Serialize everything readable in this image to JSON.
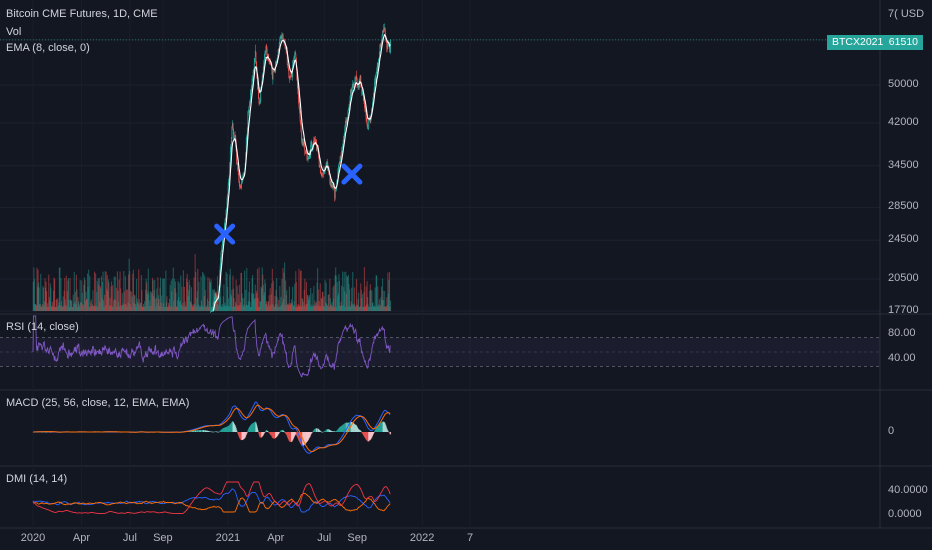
{
  "legend": {
    "title": "Bitcoin CME Futures, 1D, CME",
    "vol": "Vol",
    "ema": "EMA (8, close, 0)",
    "rsi": "RSI (14, close)",
    "macd": "MACD (25, 56, close, 12, EMA, EMA)",
    "dmi": "DMI (14, 14)"
  },
  "currency": "USD",
  "currency_prefix": "7(",
  "price_tag": {
    "symbol": "BTCX2021",
    "value": "61510"
  },
  "colors": {
    "background": "#131722",
    "up": "#26a69a",
    "down": "#ef5350",
    "ema": "#ffffff",
    "rsi": "#7e57c2",
    "macd": "#2962ff",
    "signal": "#ff6d00",
    "dmi_plus": "#2962ff",
    "dmi_minus": "#ff6d00",
    "adx": "#f23645",
    "marker": "#2962ff"
  },
  "chart_data": [
    {
      "type": "candlestick",
      "title": "Bitcoin CME Futures, 1D, CME",
      "x_ticks": [
        "2020",
        "Apr",
        "Jul",
        "Sep",
        "2021",
        "Apr",
        "Jul",
        "Sep",
        "2022",
        "7"
      ],
      "y_ticks": [
        17700,
        20500,
        24500,
        28500,
        34500,
        42000,
        50000,
        61510
      ],
      "y_scale": "log",
      "close_keypoints": [
        {
          "date": "2020-10-01",
          "close": 10700
        },
        {
          "date": "2020-10-20",
          "close": 12000
        },
        {
          "date": "2020-11-10",
          "close": 15600
        },
        {
          "date": "2020-11-26",
          "close": 17600
        },
        {
          "date": "2020-12-14",
          "close": 19300
        },
        {
          "date": "2020-12-20",
          "close": 23800
        },
        {
          "date": "2020-12-28",
          "close": 27500
        },
        {
          "date": "2021-01-03",
          "close": 33500
        },
        {
          "date": "2021-01-08",
          "close": 41000
        },
        {
          "date": "2021-01-15",
          "close": 38000
        },
        {
          "date": "2021-01-22",
          "close": 31000
        },
        {
          "date": "2021-02-01",
          "close": 34000
        },
        {
          "date": "2021-02-10",
          "close": 46000
        },
        {
          "date": "2021-02-21",
          "close": 57000
        },
        {
          "date": "2021-02-28",
          "close": 46000
        },
        {
          "date": "2021-03-13",
          "close": 61000
        },
        {
          "date": "2021-03-25",
          "close": 53000
        },
        {
          "date": "2021-04-13",
          "close": 64000
        },
        {
          "date": "2021-04-25",
          "close": 50500
        },
        {
          "date": "2021-05-07",
          "close": 57500
        },
        {
          "date": "2021-05-19",
          "close": 38500
        },
        {
          "date": "2021-05-30",
          "close": 35500
        },
        {
          "date": "2021-06-14",
          "close": 40000
        },
        {
          "date": "2021-06-25",
          "close": 32500
        },
        {
          "date": "2021-07-06",
          "close": 34500
        },
        {
          "date": "2021-07-20",
          "close": 30000
        },
        {
          "date": "2021-08-05",
          "close": 39000
        },
        {
          "date": "2021-08-22",
          "close": 49000
        },
        {
          "date": "2021-09-06",
          "close": 51500
        },
        {
          "date": "2021-09-21",
          "close": 41500
        },
        {
          "date": "2021-10-01",
          "close": 48000
        },
        {
          "date": "2021-10-15",
          "close": 61500
        },
        {
          "date": "2021-10-20",
          "close": 66000
        },
        {
          "date": "2021-10-27",
          "close": 59500
        },
        {
          "date": "2021-11-02",
          "close": 61510
        }
      ],
      "price_tag": 61510,
      "markers": [
        {
          "shape": "x",
          "date": "2020-12-26",
          "price": 25200
        },
        {
          "shape": "x",
          "date": "2021-08-22",
          "price": 33200
        }
      ]
    },
    {
      "type": "line",
      "title": "RSI (14, close)",
      "y_ticks": [
        80.0,
        40.0
      ],
      "bands": [
        70,
        30
      ]
    },
    {
      "type": "line",
      "title": "MACD (25, 56, close, 12, EMA, EMA)",
      "y_ticks": [
        0
      ],
      "series": [
        {
          "role": "macd"
        },
        {
          "role": "signal"
        },
        {
          "role": "histogram"
        }
      ]
    },
    {
      "type": "line",
      "title": "DMI (14, 14)",
      "y_ticks": [
        "40.0000",
        "0.0000"
      ],
      "series": [
        {
          "role": "+DI"
        },
        {
          "role": "-DI"
        },
        {
          "role": "ADX"
        }
      ]
    }
  ]
}
